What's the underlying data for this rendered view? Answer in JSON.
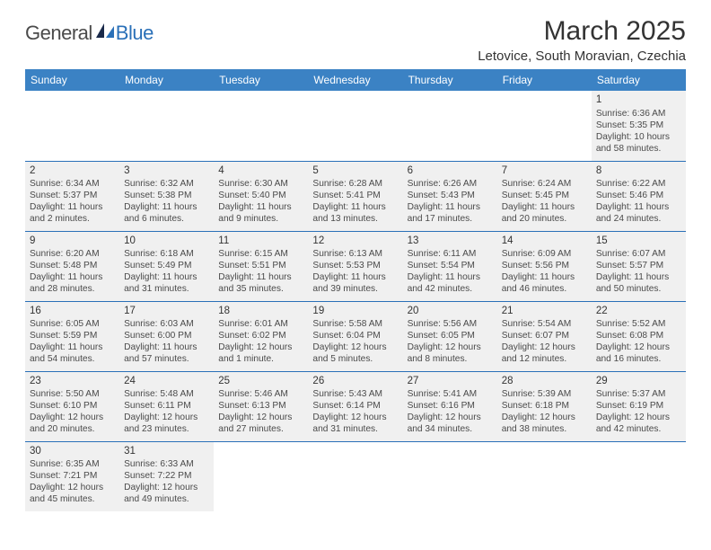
{
  "logo": {
    "general": "General",
    "blue": "Blue"
  },
  "title": "March 2025",
  "location": "Letovice, South Moravian, Czechia",
  "colors": {
    "header_bg": "#3b82c4",
    "header_text": "#ffffff",
    "border": "#2a70b8",
    "shaded": "#f0f0f0",
    "body_text": "#4a4a4a",
    "title_text": "#333333"
  },
  "weekdays": [
    "Sunday",
    "Monday",
    "Tuesday",
    "Wednesday",
    "Thursday",
    "Friday",
    "Saturday"
  ],
  "weeks": [
    [
      {
        "day": "",
        "sunrise": "",
        "sunset": "",
        "daylight": "",
        "shaded": false
      },
      {
        "day": "",
        "sunrise": "",
        "sunset": "",
        "daylight": "",
        "shaded": false
      },
      {
        "day": "",
        "sunrise": "",
        "sunset": "",
        "daylight": "",
        "shaded": false
      },
      {
        "day": "",
        "sunrise": "",
        "sunset": "",
        "daylight": "",
        "shaded": false
      },
      {
        "day": "",
        "sunrise": "",
        "sunset": "",
        "daylight": "",
        "shaded": false
      },
      {
        "day": "",
        "sunrise": "",
        "sunset": "",
        "daylight": "",
        "shaded": false
      },
      {
        "day": "1",
        "sunrise": "Sunrise: 6:36 AM",
        "sunset": "Sunset: 5:35 PM",
        "daylight": "Daylight: 10 hours and 58 minutes.",
        "shaded": true
      }
    ],
    [
      {
        "day": "2",
        "sunrise": "Sunrise: 6:34 AM",
        "sunset": "Sunset: 5:37 PM",
        "daylight": "Daylight: 11 hours and 2 minutes.",
        "shaded": true
      },
      {
        "day": "3",
        "sunrise": "Sunrise: 6:32 AM",
        "sunset": "Sunset: 5:38 PM",
        "daylight": "Daylight: 11 hours and 6 minutes.",
        "shaded": true
      },
      {
        "day": "4",
        "sunrise": "Sunrise: 6:30 AM",
        "sunset": "Sunset: 5:40 PM",
        "daylight": "Daylight: 11 hours and 9 minutes.",
        "shaded": true
      },
      {
        "day": "5",
        "sunrise": "Sunrise: 6:28 AM",
        "sunset": "Sunset: 5:41 PM",
        "daylight": "Daylight: 11 hours and 13 minutes.",
        "shaded": true
      },
      {
        "day": "6",
        "sunrise": "Sunrise: 6:26 AM",
        "sunset": "Sunset: 5:43 PM",
        "daylight": "Daylight: 11 hours and 17 minutes.",
        "shaded": true
      },
      {
        "day": "7",
        "sunrise": "Sunrise: 6:24 AM",
        "sunset": "Sunset: 5:45 PM",
        "daylight": "Daylight: 11 hours and 20 minutes.",
        "shaded": true
      },
      {
        "day": "8",
        "sunrise": "Sunrise: 6:22 AM",
        "sunset": "Sunset: 5:46 PM",
        "daylight": "Daylight: 11 hours and 24 minutes.",
        "shaded": true
      }
    ],
    [
      {
        "day": "9",
        "sunrise": "Sunrise: 6:20 AM",
        "sunset": "Sunset: 5:48 PM",
        "daylight": "Daylight: 11 hours and 28 minutes.",
        "shaded": true
      },
      {
        "day": "10",
        "sunrise": "Sunrise: 6:18 AM",
        "sunset": "Sunset: 5:49 PM",
        "daylight": "Daylight: 11 hours and 31 minutes.",
        "shaded": true
      },
      {
        "day": "11",
        "sunrise": "Sunrise: 6:15 AM",
        "sunset": "Sunset: 5:51 PM",
        "daylight": "Daylight: 11 hours and 35 minutes.",
        "shaded": true
      },
      {
        "day": "12",
        "sunrise": "Sunrise: 6:13 AM",
        "sunset": "Sunset: 5:53 PM",
        "daylight": "Daylight: 11 hours and 39 minutes.",
        "shaded": true
      },
      {
        "day": "13",
        "sunrise": "Sunrise: 6:11 AM",
        "sunset": "Sunset: 5:54 PM",
        "daylight": "Daylight: 11 hours and 42 minutes.",
        "shaded": true
      },
      {
        "day": "14",
        "sunrise": "Sunrise: 6:09 AM",
        "sunset": "Sunset: 5:56 PM",
        "daylight": "Daylight: 11 hours and 46 minutes.",
        "shaded": true
      },
      {
        "day": "15",
        "sunrise": "Sunrise: 6:07 AM",
        "sunset": "Sunset: 5:57 PM",
        "daylight": "Daylight: 11 hours and 50 minutes.",
        "shaded": true
      }
    ],
    [
      {
        "day": "16",
        "sunrise": "Sunrise: 6:05 AM",
        "sunset": "Sunset: 5:59 PM",
        "daylight": "Daylight: 11 hours and 54 minutes.",
        "shaded": true
      },
      {
        "day": "17",
        "sunrise": "Sunrise: 6:03 AM",
        "sunset": "Sunset: 6:00 PM",
        "daylight": "Daylight: 11 hours and 57 minutes.",
        "shaded": true
      },
      {
        "day": "18",
        "sunrise": "Sunrise: 6:01 AM",
        "sunset": "Sunset: 6:02 PM",
        "daylight": "Daylight: 12 hours and 1 minute.",
        "shaded": true
      },
      {
        "day": "19",
        "sunrise": "Sunrise: 5:58 AM",
        "sunset": "Sunset: 6:04 PM",
        "daylight": "Daylight: 12 hours and 5 minutes.",
        "shaded": true
      },
      {
        "day": "20",
        "sunrise": "Sunrise: 5:56 AM",
        "sunset": "Sunset: 6:05 PM",
        "daylight": "Daylight: 12 hours and 8 minutes.",
        "shaded": true
      },
      {
        "day": "21",
        "sunrise": "Sunrise: 5:54 AM",
        "sunset": "Sunset: 6:07 PM",
        "daylight": "Daylight: 12 hours and 12 minutes.",
        "shaded": true
      },
      {
        "day": "22",
        "sunrise": "Sunrise: 5:52 AM",
        "sunset": "Sunset: 6:08 PM",
        "daylight": "Daylight: 12 hours and 16 minutes.",
        "shaded": true
      }
    ],
    [
      {
        "day": "23",
        "sunrise": "Sunrise: 5:50 AM",
        "sunset": "Sunset: 6:10 PM",
        "daylight": "Daylight: 12 hours and 20 minutes.",
        "shaded": true
      },
      {
        "day": "24",
        "sunrise": "Sunrise: 5:48 AM",
        "sunset": "Sunset: 6:11 PM",
        "daylight": "Daylight: 12 hours and 23 minutes.",
        "shaded": true
      },
      {
        "day": "25",
        "sunrise": "Sunrise: 5:46 AM",
        "sunset": "Sunset: 6:13 PM",
        "daylight": "Daylight: 12 hours and 27 minutes.",
        "shaded": true
      },
      {
        "day": "26",
        "sunrise": "Sunrise: 5:43 AM",
        "sunset": "Sunset: 6:14 PM",
        "daylight": "Daylight: 12 hours and 31 minutes.",
        "shaded": true
      },
      {
        "day": "27",
        "sunrise": "Sunrise: 5:41 AM",
        "sunset": "Sunset: 6:16 PM",
        "daylight": "Daylight: 12 hours and 34 minutes.",
        "shaded": true
      },
      {
        "day": "28",
        "sunrise": "Sunrise: 5:39 AM",
        "sunset": "Sunset: 6:18 PM",
        "daylight": "Daylight: 12 hours and 38 minutes.",
        "shaded": true
      },
      {
        "day": "29",
        "sunrise": "Sunrise: 5:37 AM",
        "sunset": "Sunset: 6:19 PM",
        "daylight": "Daylight: 12 hours and 42 minutes.",
        "shaded": true
      }
    ],
    [
      {
        "day": "30",
        "sunrise": "Sunrise: 6:35 AM",
        "sunset": "Sunset: 7:21 PM",
        "daylight": "Daylight: 12 hours and 45 minutes.",
        "shaded": true
      },
      {
        "day": "31",
        "sunrise": "Sunrise: 6:33 AM",
        "sunset": "Sunset: 7:22 PM",
        "daylight": "Daylight: 12 hours and 49 minutes.",
        "shaded": true
      },
      {
        "day": "",
        "sunrise": "",
        "sunset": "",
        "daylight": "",
        "shaded": false
      },
      {
        "day": "",
        "sunrise": "",
        "sunset": "",
        "daylight": "",
        "shaded": false
      },
      {
        "day": "",
        "sunrise": "",
        "sunset": "",
        "daylight": "",
        "shaded": false
      },
      {
        "day": "",
        "sunrise": "",
        "sunset": "",
        "daylight": "",
        "shaded": false
      },
      {
        "day": "",
        "sunrise": "",
        "sunset": "",
        "daylight": "",
        "shaded": false
      }
    ]
  ]
}
